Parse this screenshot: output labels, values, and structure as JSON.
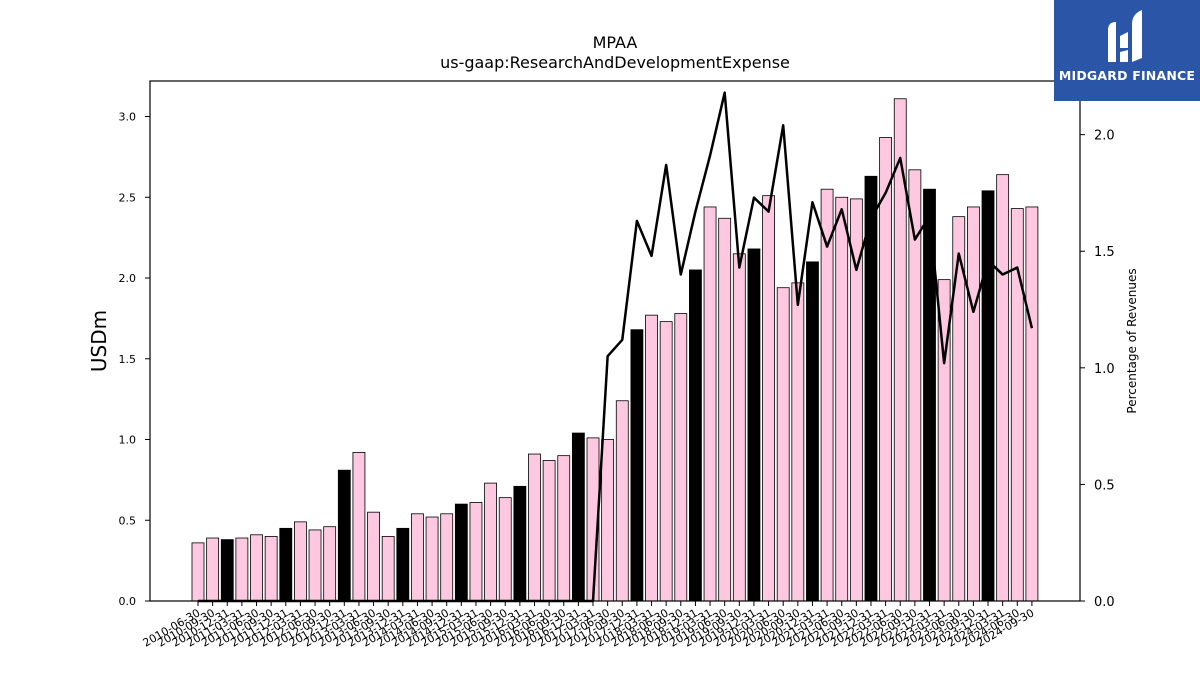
{
  "title": "MPAA",
  "subtitle": "us-gaap:ResearchAndDevelopmentExpense",
  "logo": {
    "text": "MIDGARD FINANCE",
    "bg_color": "#2b56a8"
  },
  "chart_data": {
    "type": "bar",
    "title": "MPAA",
    "subtitle": "us-gaap:ResearchAndDevelopmentExpense",
    "ylabel": "USDm",
    "y2label": "Percentage of Revenues",
    "ylim": [
      0,
      3.22
    ],
    "y2lim": [
      0,
      2.23
    ],
    "yticks": [
      "0.0",
      "0.5",
      "1.0",
      "1.5",
      "2.0",
      "2.5",
      "3.0"
    ],
    "y2ticks": [
      "0.0",
      "0.5",
      "1.0",
      "1.5",
      "2.0"
    ],
    "colors": {
      "quarter": "#ffc8e1",
      "annual": "#000000",
      "line": "#000000"
    },
    "categories": [
      "2010-06-30",
      "2010-09-30",
      "2010-12-31",
      "2011-03-31",
      "2011-06-30",
      "2011-09-30",
      "2011-12-31",
      "2012-03-31",
      "2012-06-30",
      "2012-09-30",
      "2012-12-31",
      "2013-03-31",
      "2013-06-30",
      "2013-09-30",
      "2013-12-31",
      "2014-03-31",
      "2014-06-30",
      "2014-09-30",
      "2014-12-31",
      "2015-03-31",
      "2015-06-30",
      "2015-09-30",
      "2015-12-31",
      "2016-03-31",
      "2016-06-30",
      "2016-09-30",
      "2016-12-31",
      "2017-03-31",
      "2017-06-30",
      "2017-09-30",
      "2017-12-31",
      "2018-03-31",
      "2018-06-30",
      "2018-09-30",
      "2018-12-31",
      "2019-03-31",
      "2019-06-30",
      "2019-09-30",
      "2019-12-31",
      "2020-03-31",
      "2020-06-30",
      "2020-09-30",
      "2020-12-31",
      "2021-03-31",
      "2021-06-30",
      "2021-09-30",
      "2021-12-31",
      "2022-03-31",
      "2022-06-30",
      "2022-09-30",
      "2022-12-31",
      "2023-03-31",
      "2023-06-30",
      "2023-09-30",
      "2023-12-31",
      "2024-03-31",
      "2024-06-30",
      "2024-09-30"
    ],
    "series": [
      {
        "values": [
          0.36,
          0.39,
          0.38,
          0.39,
          0.41,
          0.4,
          0.45,
          0.49,
          0.44,
          0.46,
          0.81,
          0.92,
          0.55,
          0.4,
          0.45,
          0.54,
          0.52,
          0.54,
          0.6,
          0.61,
          0.73,
          0.64,
          0.71,
          0.91,
          0.87,
          0.9,
          1.04,
          1.01,
          1.0,
          1.24,
          1.68,
          1.77,
          1.73,
          1.78,
          2.05,
          2.44,
          2.37,
          2.15,
          2.18,
          2.51,
          1.94,
          1.97,
          2.1,
          2.55,
          2.5,
          2.49,
          2.63,
          2.87,
          3.11,
          2.67,
          2.55,
          1.99,
          2.38,
          2.44,
          2.54,
          2.64,
          2.43,
          2.44
        ],
        "annual": [
          false,
          false,
          true,
          false,
          false,
          false,
          true,
          false,
          false,
          false,
          true,
          false,
          false,
          false,
          true,
          false,
          false,
          false,
          true,
          false,
          false,
          false,
          true,
          false,
          false,
          false,
          true,
          false,
          false,
          false,
          true,
          false,
          false,
          false,
          true,
          false,
          false,
          false,
          true,
          false,
          false,
          false,
          true,
          false,
          false,
          false,
          true,
          false,
          false,
          false,
          true,
          false,
          false,
          false,
          true,
          false,
          false,
          false
        ]
      },
      {
        "type": "line",
        "axis": "right",
        "values": [
          0,
          0,
          0,
          0,
          0,
          0,
          0,
          0,
          0,
          0,
          0,
          0,
          0,
          0,
          0,
          0,
          0,
          0,
          0,
          0,
          0,
          0,
          0,
          0,
          0,
          0,
          0,
          0,
          1.05,
          1.12,
          1.63,
          1.48,
          1.87,
          1.4,
          1.67,
          1.91,
          2.18,
          1.43,
          1.73,
          1.67,
          2.04,
          1.27,
          1.71,
          1.52,
          1.68,
          1.42,
          1.64,
          1.75,
          1.9,
          1.55,
          1.65,
          1.02,
          1.49,
          1.24,
          1.46,
          1.4,
          1.43,
          1.17
        ]
      }
    ]
  }
}
